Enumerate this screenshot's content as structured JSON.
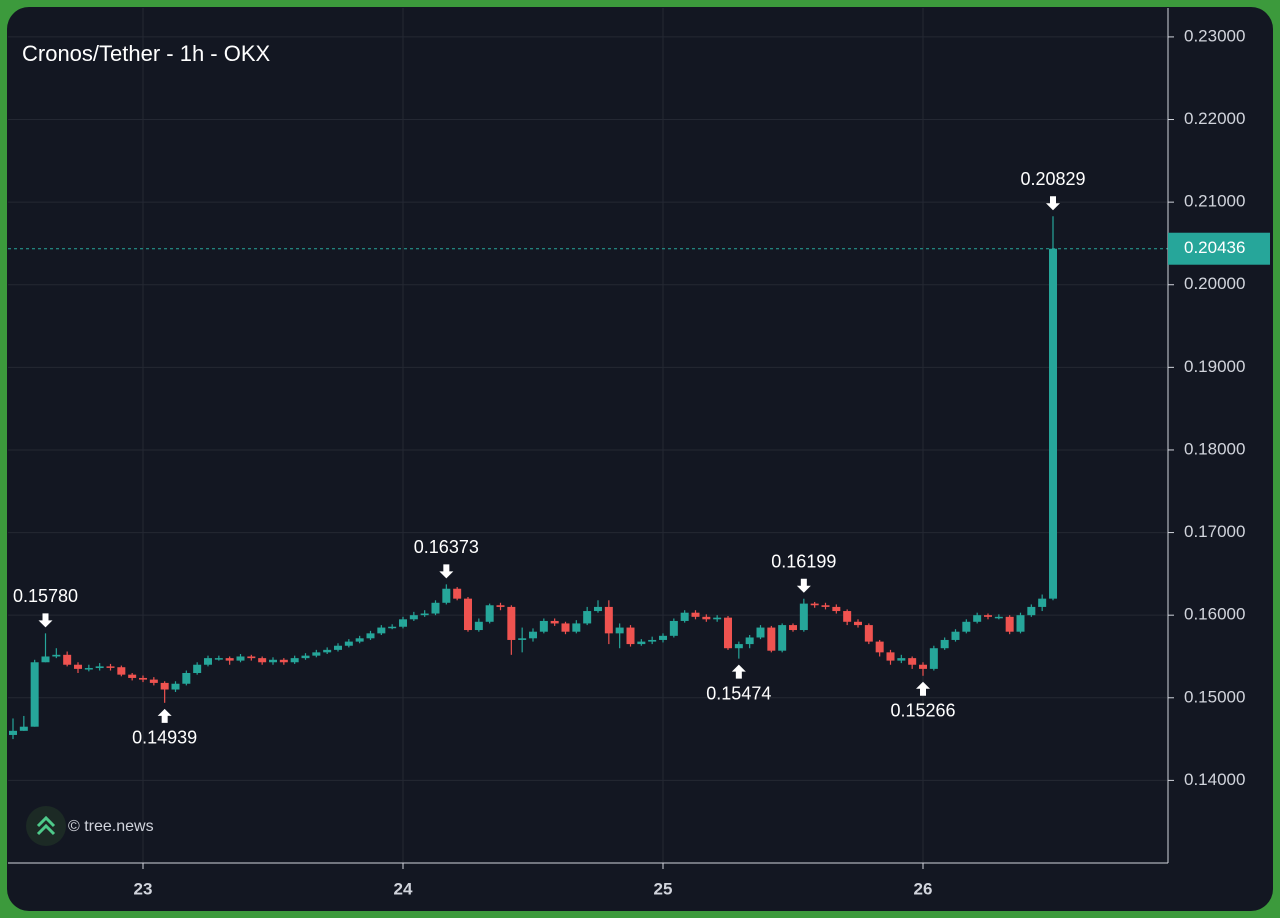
{
  "chart_data": {
    "type": "candlestick",
    "title": "Cronos/Tether - 1h - OKX",
    "watermark": "© tree.news",
    "up_color": "#26a69a",
    "down_color": "#ef5350",
    "grid": true,
    "ylim": [
      0.13,
      0.2335
    ],
    "yticks": [
      {
        "value": 0.14,
        "label": "0.14000"
      },
      {
        "value": 0.15,
        "label": "0.15000"
      },
      {
        "value": 0.16,
        "label": "0.16000"
      },
      {
        "value": 0.17,
        "label": "0.17000"
      },
      {
        "value": 0.18,
        "label": "0.18000"
      },
      {
        "value": 0.19,
        "label": "0.19000"
      },
      {
        "value": 0.2,
        "label": "0.20000"
      },
      {
        "value": 0.21,
        "label": "0.21000"
      },
      {
        "value": 0.22,
        "label": "0.22000"
      },
      {
        "value": 0.23,
        "label": "0.23000"
      }
    ],
    "categories": [
      null,
      null,
      null,
      null,
      null,
      null,
      null,
      null,
      null,
      null,
      null,
      null,
      "23",
      null,
      null,
      null,
      null,
      null,
      null,
      null,
      null,
      null,
      null,
      null,
      null,
      null,
      null,
      null,
      null,
      null,
      null,
      null,
      null,
      null,
      null,
      null,
      "24",
      null,
      null,
      null,
      null,
      null,
      null,
      null,
      null,
      null,
      null,
      null,
      null,
      null,
      null,
      null,
      null,
      null,
      null,
      null,
      null,
      null,
      null,
      null,
      "25",
      null,
      null,
      null,
      null,
      null,
      null,
      null,
      null,
      null,
      null,
      null,
      null,
      null,
      null,
      null,
      null,
      null,
      null,
      null,
      null,
      null,
      null,
      null,
      "26",
      null,
      null,
      null,
      null,
      null,
      null,
      null,
      null,
      null,
      null,
      null,
      null
    ],
    "open": [
      0.1455,
      0.146,
      0.1465,
      0.1543,
      0.155,
      0.1552,
      0.154,
      0.1535,
      0.1536,
      0.1538,
      0.1537,
      0.1528,
      0.1524,
      0.1522,
      0.1518,
      0.151,
      0.1517,
      0.153,
      0.154,
      0.1548,
      0.1548,
      0.1545,
      0.155,
      0.1548,
      0.1543,
      0.1546,
      0.1543,
      0.1548,
      0.1551,
      0.1555,
      0.1558,
      0.1563,
      0.1568,
      0.1572,
      0.1578,
      0.1585,
      0.1586,
      0.1595,
      0.16,
      0.1602,
      0.1615,
      0.1632,
      0.162,
      0.1582,
      0.1592,
      0.1612,
      0.161,
      0.157,
      0.1572,
      0.158,
      0.1593,
      0.159,
      0.158,
      0.159,
      0.1605,
      0.161,
      0.1578,
      0.1585,
      0.1565,
      0.1568,
      0.157,
      0.1575,
      0.1593,
      0.1603,
      0.1598,
      0.1595,
      0.1597,
      0.156,
      0.1565,
      0.1573,
      0.1585,
      0.1557,
      0.1588,
      0.1582,
      0.1614,
      0.1612,
      0.161,
      0.1605,
      0.1592,
      0.1588,
      0.1568,
      0.1555,
      0.1545,
      0.1548,
      0.154,
      0.1535,
      0.156,
      0.157,
      0.158,
      0.1592,
      0.16,
      0.1598,
      0.1598,
      0.158,
      0.16,
      0.161,
      0.162
    ],
    "high": [
      0.1475,
      0.1478,
      0.1546,
      0.1578,
      0.156,
      0.1556,
      0.1543,
      0.154,
      0.1542,
      0.1541,
      0.1539,
      0.153,
      0.1527,
      0.1525,
      0.152,
      0.152,
      0.1533,
      0.1543,
      0.1551,
      0.1551,
      0.155,
      0.1553,
      0.1552,
      0.155,
      0.1549,
      0.1548,
      0.1551,
      0.1554,
      0.1558,
      0.1561,
      0.1566,
      0.1571,
      0.1575,
      0.1581,
      0.1588,
      0.1589,
      0.1598,
      0.1604,
      0.1606,
      0.1618,
      0.16373,
      0.1634,
      0.1622,
      0.1596,
      0.1614,
      0.1615,
      0.1612,
      0.1585,
      0.1584,
      0.1596,
      0.1596,
      0.1592,
      0.1594,
      0.161,
      0.1618,
      0.1618,
      0.159,
      0.1588,
      0.1571,
      0.1574,
      0.1578,
      0.1596,
      0.1606,
      0.1606,
      0.1601,
      0.16,
      0.1599,
      0.1568,
      0.1576,
      0.1588,
      0.1587,
      0.159,
      0.159,
      0.16199,
      0.1616,
      0.1615,
      0.1613,
      0.1607,
      0.1595,
      0.159,
      0.157,
      0.1558,
      0.1552,
      0.155,
      0.1543,
      0.1563,
      0.1573,
      0.1583,
      0.1595,
      0.1603,
      0.1602,
      0.1601,
      0.16,
      0.1603,
      0.1613,
      0.1625,
      0.20829
    ],
    "low": [
      0.145,
      0.146,
      0.1465,
      0.1543,
      0.1548,
      0.1538,
      0.153,
      0.1532,
      0.1533,
      0.1533,
      0.1526,
      0.1521,
      0.1519,
      0.1515,
      0.14939,
      0.1507,
      0.1515,
      0.1528,
      0.1538,
      0.1545,
      0.154,
      0.1543,
      0.1545,
      0.154,
      0.154,
      0.154,
      0.1541,
      0.1546,
      0.1549,
      0.1553,
      0.1556,
      0.1561,
      0.1566,
      0.157,
      0.1576,
      0.1583,
      0.1584,
      0.1593,
      0.1598,
      0.16,
      0.1613,
      0.1618,
      0.158,
      0.158,
      0.159,
      0.1606,
      0.1552,
      0.1555,
      0.1568,
      0.1578,
      0.1587,
      0.1577,
      0.1578,
      0.1588,
      0.1603,
      0.1565,
      0.156,
      0.1562,
      0.1563,
      0.1565,
      0.1567,
      0.1573,
      0.1591,
      0.1595,
      0.1592,
      0.1592,
      0.1558,
      0.15474,
      0.156,
      0.1571,
      0.1555,
      0.1555,
      0.158,
      0.158,
      0.1609,
      0.1607,
      0.1602,
      0.1588,
      0.1585,
      0.1565,
      0.155,
      0.154,
      0.1542,
      0.1535,
      0.15266,
      0.1533,
      0.1558,
      0.1568,
      0.1578,
      0.159,
      0.1595,
      0.1595,
      0.1577,
      0.1578,
      0.1598,
      0.1605,
      0.1618
    ],
    "close": [
      0.146,
      0.1465,
      0.1543,
      0.155,
      0.1552,
      0.154,
      0.1535,
      0.1536,
      0.1538,
      0.1537,
      0.1528,
      0.1524,
      0.1522,
      0.1518,
      0.151,
      0.1517,
      0.153,
      0.154,
      0.1548,
      0.1548,
      0.1545,
      0.155,
      0.1548,
      0.1543,
      0.1546,
      0.1543,
      0.1548,
      0.1551,
      0.1555,
      0.1558,
      0.1563,
      0.1568,
      0.1572,
      0.1578,
      0.1585,
      0.1586,
      0.1595,
      0.16,
      0.1602,
      0.1615,
      0.1632,
      0.162,
      0.1582,
      0.1592,
      0.1612,
      0.161,
      0.157,
      0.1572,
      0.158,
      0.1593,
      0.159,
      0.158,
      0.159,
      0.1605,
      0.161,
      0.1578,
      0.1585,
      0.1565,
      0.1568,
      0.157,
      0.1575,
      0.1593,
      0.1603,
      0.1598,
      0.1595,
      0.1597,
      0.156,
      0.1565,
      0.1573,
      0.1585,
      0.1557,
      0.1588,
      0.1582,
      0.1614,
      0.1612,
      0.161,
      0.1605,
      0.1592,
      0.1588,
      0.1568,
      0.1555,
      0.1545,
      0.1548,
      0.154,
      0.1535,
      0.156,
      0.157,
      0.158,
      0.1592,
      0.16,
      0.1598,
      0.1598,
      0.158,
      0.16,
      0.161,
      0.162,
      0.20436
    ],
    "high_labels": [
      null,
      null,
      null,
      "0.15780",
      null,
      null,
      null,
      null,
      null,
      null,
      null,
      null,
      null,
      null,
      null,
      null,
      null,
      null,
      null,
      null,
      null,
      null,
      null,
      null,
      null,
      null,
      null,
      null,
      null,
      null,
      null,
      null,
      null,
      null,
      null,
      null,
      null,
      null,
      null,
      null,
      "0.16373",
      null,
      null,
      null,
      null,
      null,
      null,
      null,
      null,
      null,
      null,
      null,
      null,
      null,
      null,
      null,
      null,
      null,
      null,
      null,
      null,
      null,
      null,
      null,
      null,
      null,
      null,
      null,
      null,
      null,
      null,
      null,
      null,
      "0.16199",
      null,
      null,
      null,
      null,
      null,
      null,
      null,
      null,
      null,
      null,
      null,
      null,
      null,
      null,
      null,
      null,
      null,
      null,
      null,
      null,
      null,
      null,
      "0.20829"
    ],
    "low_labels": [
      null,
      null,
      null,
      null,
      null,
      null,
      null,
      null,
      null,
      null,
      null,
      null,
      null,
      null,
      "0.14939",
      null,
      null,
      null,
      null,
      null,
      null,
      null,
      null,
      null,
      null,
      null,
      null,
      null,
      null,
      null,
      null,
      null,
      null,
      null,
      null,
      null,
      null,
      null,
      null,
      null,
      null,
      null,
      null,
      null,
      null,
      null,
      null,
      null,
      null,
      null,
      null,
      null,
      null,
      null,
      null,
      null,
      null,
      null,
      null,
      null,
      null,
      null,
      null,
      null,
      null,
      null,
      null,
      "0.15474",
      null,
      null,
      null,
      null,
      null,
      null,
      null,
      null,
      null,
      null,
      null,
      null,
      null,
      null,
      null,
      null,
      "0.15266",
      null,
      null,
      null,
      null,
      null,
      null,
      null,
      null,
      null,
      null,
      null,
      null
    ],
    "close_labels": [
      null,
      null,
      null,
      null,
      null,
      null,
      null,
      null,
      null,
      null,
      null,
      null,
      null,
      null,
      null,
      null,
      null,
      null,
      null,
      null,
      null,
      null,
      null,
      null,
      null,
      null,
      null,
      null,
      null,
      null,
      null,
      null,
      null,
      null,
      null,
      null,
      null,
      null,
      null,
      null,
      null,
      null,
      null,
      null,
      null,
      null,
      null,
      null,
      null,
      null,
      null,
      null,
      null,
      null,
      null,
      null,
      null,
      null,
      null,
      null,
      null,
      null,
      null,
      null,
      null,
      null,
      null,
      null,
      null,
      null,
      null,
      null,
      null,
      null,
      null,
      null,
      null,
      null,
      null,
      null,
      null,
      null,
      null,
      null,
      null,
      null,
      null,
      null,
      null,
      null,
      null,
      null,
      null,
      null,
      null,
      null,
      "0.20436"
    ]
  }
}
